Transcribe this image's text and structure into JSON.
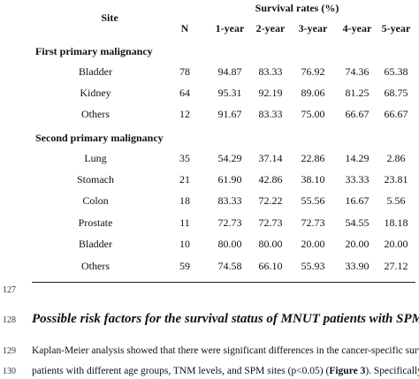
{
  "table": {
    "site_header": "Site",
    "survival_header": "Survival rates (%)",
    "columns": [
      "N",
      "1-year",
      "2-year",
      "3-year",
      "4-year",
      "5-year"
    ],
    "groups": [
      {
        "title": "First primary malignancy",
        "rows": [
          {
            "site": "Bladder",
            "values": [
              "78",
              "94.87",
              "83.33",
              "76.92",
              "74.36",
              "65.38"
            ]
          },
          {
            "site": "Kidney",
            "values": [
              "64",
              "95.31",
              "92.19",
              "89.06",
              "81.25",
              "68.75"
            ]
          },
          {
            "site": "Others",
            "values": [
              "12",
              "91.67",
              "83.33",
              "75.00",
              "66.67",
              "66.67"
            ]
          }
        ]
      },
      {
        "title": "Second primary malignancy",
        "rows": [
          {
            "site": "Lung",
            "values": [
              "35",
              "54.29",
              "37.14",
              "22.86",
              "14.29",
              "2.86"
            ]
          },
          {
            "site": "Stomach",
            "values": [
              "21",
              "61.90",
              "42.86",
              "38.10",
              "33.33",
              "23.81"
            ]
          },
          {
            "site": "Colon",
            "values": [
              "18",
              "83.33",
              "72.22",
              "55.56",
              "16.67",
              "5.56"
            ]
          },
          {
            "site": "Prostate",
            "values": [
              "11",
              "72.73",
              "72.73",
              "72.73",
              "54.55",
              "18.18"
            ]
          },
          {
            "site": "Bladder",
            "values": [
              "10",
              "80.00",
              "80.00",
              "20.00",
              "20.00",
              "20.00"
            ]
          },
          {
            "site": "Others",
            "values": [
              "59",
              "74.58",
              "66.10",
              "55.93",
              "33.90",
              "27.12"
            ]
          }
        ]
      }
    ]
  },
  "line_numbers": [
    "127",
    "128",
    "129",
    "130"
  ],
  "section_heading": "Possible risk factors for the survival status of MNUT patients with SPM",
  "paragraph": {
    "line1": "Kaplan-Meier analysis showed that there were significant differences in the cancer-specific survival rates of",
    "line2_pre": "patients with different age groups, TNM levels, and SPM sites (p<0.05) (",
    "line2_bold": "Figure 3",
    "line2_post": "). Specifically, patients"
  }
}
